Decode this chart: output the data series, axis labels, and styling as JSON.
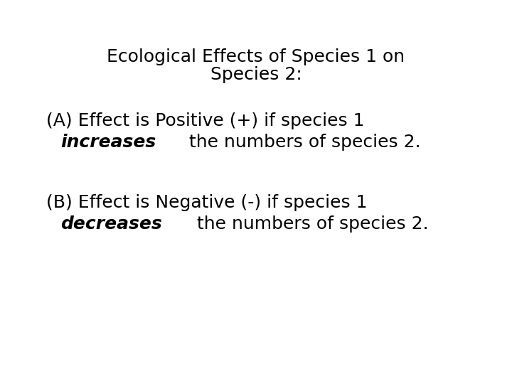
{
  "background_color": "#ffffff",
  "title_line1": "Ecological Effects of Species 1 on",
  "title_line2": "Species 2:",
  "section_A_line1": "(A) Effect is Positive (+) if species 1",
  "section_A_italic": "increases",
  "section_A_rest": " the numbers of species 2.",
  "section_B_line1": "(B) Effect is Negative (-) if species 1",
  "section_B_italic": "decreases",
  "section_B_rest": " the numbers of species 2.",
  "title_fontsize": 18,
  "body_fontsize": 18,
  "text_color": "#000000",
  "font_family": "DejaVu Sans"
}
